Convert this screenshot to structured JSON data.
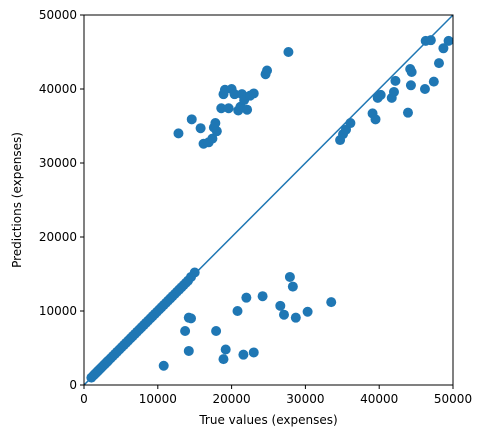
{
  "colors": {
    "series": "#1f77b4",
    "axis": "#000000",
    "background": "#ffffff"
  },
  "chart_data": {
    "type": "scatter",
    "title": "",
    "xlabel": "True values (expenses)",
    "ylabel": "Predictions (expenses)",
    "xlim": [
      0,
      50000
    ],
    "ylim": [
      0,
      50000
    ],
    "grid": false,
    "legend": "none",
    "xticks": [
      0,
      10000,
      20000,
      30000,
      40000,
      50000
    ],
    "yticks": [
      0,
      10000,
      20000,
      30000,
      40000,
      50000
    ],
    "xtick_labels": [
      "0",
      "10000",
      "20000",
      "30000",
      "40000",
      "50000"
    ],
    "ytick_labels": [
      "0",
      "10000",
      "20000",
      "30000",
      "40000",
      "50000"
    ],
    "reference_line": {
      "type": "identity",
      "from": [
        0,
        0
      ],
      "to": [
        50000,
        50000
      ]
    },
    "series": [
      {
        "x": [
          1000,
          1300,
          1500,
          1700,
          1900,
          2100,
          2300,
          2500,
          2700,
          2900,
          3100,
          3300,
          3600,
          3900,
          4200,
          4500,
          4800,
          5100,
          5400,
          5700,
          6000,
          6300,
          6600,
          6900,
          7200,
          7500,
          7800,
          8100,
          8400,
          8700,
          9000,
          9300,
          9600,
          9900,
          10200,
          10500,
          10800,
          11100,
          11400,
          11700,
          12000,
          12300,
          12600,
          12900,
          13200,
          13500,
          13800,
          14100,
          14500,
          15000,
          12800,
          14600,
          15800,
          16200,
          16900,
          17400,
          17600,
          17800,
          18000,
          18600,
          18900,
          19100,
          19600,
          20000,
          20400,
          20900,
          21200,
          21400,
          21700,
          22100,
          22500,
          23000,
          24600,
          24800,
          27700,
          34700,
          35100,
          35500,
          36100,
          39100,
          39500,
          39800,
          40200,
          41700,
          42000,
          42200,
          43900,
          44200,
          44300,
          44400,
          46200,
          46300,
          47000,
          47400,
          48100,
          48700,
          49400,
          10800,
          13700,
          14200,
          14200,
          14500,
          17900,
          18900,
          19200,
          20800,
          21600,
          22000,
          23000,
          24200,
          26600,
          27100,
          27900,
          28300,
          28700,
          30300,
          33500
        ],
        "y": [
          1000,
          1300,
          1500,
          1700,
          1900,
          2100,
          2300,
          2500,
          2700,
          2900,
          3100,
          3300,
          3600,
          3900,
          4200,
          4500,
          4800,
          5100,
          5400,
          5700,
          6000,
          6300,
          6600,
          6900,
          7200,
          7500,
          7800,
          8100,
          8400,
          8700,
          9000,
          9300,
          9600,
          9900,
          10200,
          10500,
          10800,
          11100,
          11400,
          11700,
          12000,
          12300,
          12600,
          12900,
          13200,
          13500,
          13800,
          14100,
          14600,
          15200,
          34000,
          35900,
          34700,
          32600,
          32800,
          33300,
          34800,
          35400,
          34300,
          37400,
          39300,
          39900,
          37400,
          40000,
          39300,
          37100,
          37600,
          39300,
          38500,
          37200,
          39100,
          39400,
          42000,
          42500,
          45000,
          33100,
          33900,
          34500,
          35400,
          36700,
          35900,
          38800,
          39200,
          38800,
          39600,
          41100,
          36800,
          42700,
          40500,
          42300,
          40000,
          46500,
          46600,
          41000,
          43500,
          45500,
          46500,
          2600,
          7300,
          4600,
          9100,
          9000,
          7300,
          3500,
          4800,
          10000,
          4100,
          11800,
          4400,
          12000,
          10700,
          9500,
          14600,
          13300,
          9100,
          9900,
          11200
        ]
      }
    ]
  }
}
